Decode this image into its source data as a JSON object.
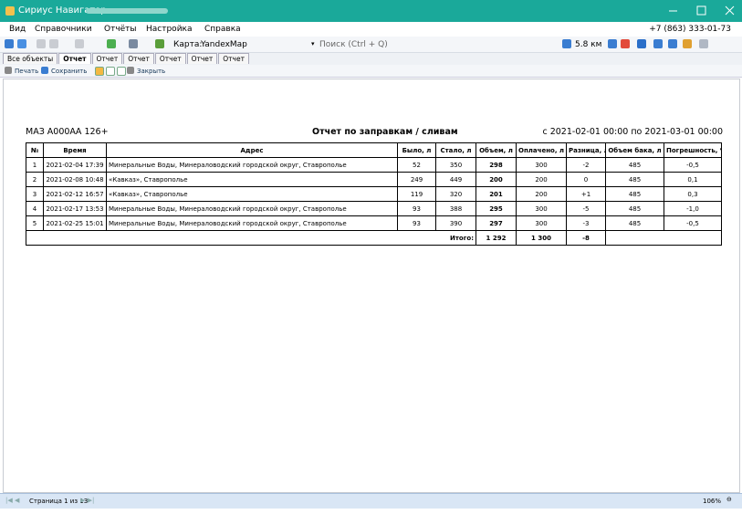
{
  "window": {
    "title": "Сириус Навигатор -"
  },
  "menu": {
    "items": [
      "Вид",
      "Справочники",
      "Отчёты",
      "Настройка",
      "Справка"
    ],
    "phone": "+7 (863) 333-01-73"
  },
  "toolbar": {
    "map_label": "Карта:",
    "map_value": "YandexMap",
    "search": "Поиск (Ctrl + Q)",
    "scale": "5.8 км"
  },
  "tabs": [
    "Все объекты",
    "Отчет",
    "Отчет",
    "Отчет",
    "Отчет",
    "Отчет",
    "Отчет"
  ],
  "report_toolbar": [
    "Печать",
    "Сохранить",
    "Закрыть"
  ],
  "report": {
    "vehicle": "МАЗ А000АА  126+",
    "title": "Отчет по заправкам / сливам",
    "period": "с 2021-02-01 00:00 по 2021-03-01 00:00",
    "table": {
      "headers": [
        "№",
        "Время",
        "Адрес",
        "Было, л",
        "Стало, л",
        "Объем, л",
        "Оплачено, л",
        "Разница, л",
        "Объем бака, л",
        "Погрешность, %"
      ],
      "rows": [
        [
          "1",
          "2021-02-04 17:39",
          "Минеральные Воды, Минераловодский городской округ, Ставрополье",
          "52",
          "350",
          "298",
          "300",
          "-2",
          "485",
          "-0,5"
        ],
        [
          "2",
          "2021-02-08 10:48",
          "«Кавказ», Ставрополье",
          "249",
          "449",
          "200",
          "200",
          "0",
          "485",
          "0,1"
        ],
        [
          "3",
          "2021-02-12 16:57",
          "«Кавказ», Ставрополье",
          "119",
          "320",
          "201",
          "200",
          "+1",
          "485",
          "0,3"
        ],
        [
          "4",
          "2021-02-17 13:53",
          "Минеральные Воды, Минераловодский городской округ, Ставрополье",
          "93",
          "388",
          "295",
          "300",
          "-5",
          "485",
          "-1,0"
        ],
        [
          "5",
          "2021-02-25 15:01",
          "Минеральные Воды, Минераловодский городской округ, Ставрополье",
          "93",
          "390",
          "297",
          "300",
          "-3",
          "485",
          "-0,5"
        ]
      ],
      "total": {
        "label": "Итого:",
        "volume": "1 292",
        "paid": "1 300",
        "diff": "-8"
      }
    }
  },
  "status": {
    "page": "Страница 1 из 13",
    "zoom": "106%"
  }
}
